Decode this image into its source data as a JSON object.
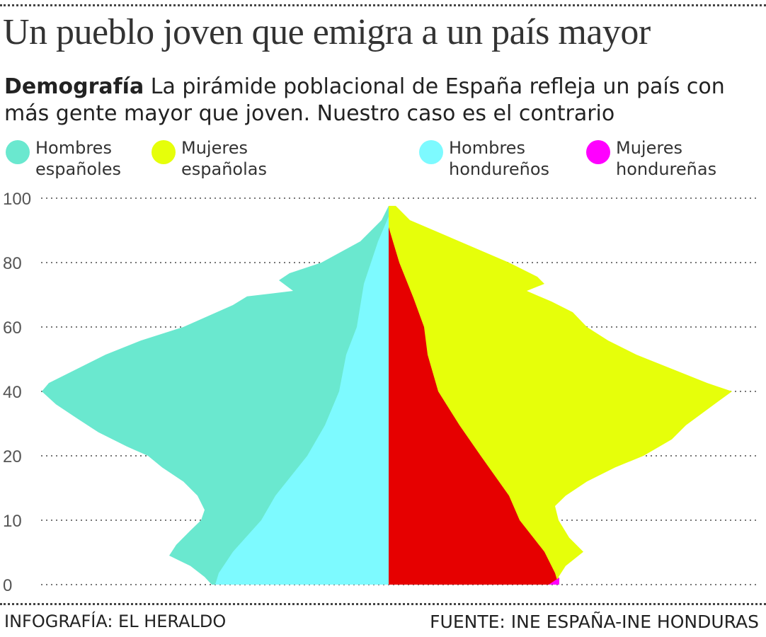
{
  "title": "Un pueblo joven que emigra a un país mayor",
  "subtitle": {
    "bold": "Demografía",
    "text": " La pirámide poblacional de España refleja un país con más gente mayor que joven. Nuestro caso es el contrario"
  },
  "credits": {
    "left": "INFOGRAFÍA: EL HERALDO",
    "right": "FUENTE: INE ESPAÑA-INE HONDURAS"
  },
  "chart_data": {
    "type": "area",
    "subtype": "population pyramid",
    "ylabel": "",
    "xlabel": "",
    "y_ticks": [
      100,
      80,
      60,
      40,
      20,
      10,
      0
    ],
    "y_ticks_evenly_spaced": true,
    "grid": "dotted horizontal",
    "legend_placement": "top",
    "x_units": "relative (no axis printed)",
    "series": [
      {
        "name": "Hombres españoles",
        "side": "left",
        "color": "#6AE8CF",
        "age": [
          97.6,
          93.2,
          86.6,
          80,
          76.7,
          74.5,
          71.2,
          69.5,
          66.8,
          60,
          55.8,
          51.4,
          47,
          42.6,
          40,
          36,
          31.6,
          27.3,
          22.9,
          20,
          18.2,
          16,
          13.8,
          11.6,
          10,
          8.4,
          6.2,
          4.5,
          2.9,
          1.2,
          0
        ],
        "value": [
          0,
          2,
          8,
          19,
          28,
          31,
          27,
          40,
          44,
          58,
          70,
          80,
          88,
          96,
          98,
          94,
          88,
          82,
          74,
          68,
          64,
          58,
          54,
          52,
          53,
          56,
          60,
          62,
          56,
          52,
          50
        ]
      },
      {
        "name": "Mujeres españolas",
        "side": "right",
        "color": "#E6FF0A",
        "age": [
          97.6,
          93.2,
          86.6,
          80,
          75.6,
          73.4,
          71.2,
          67.9,
          64.6,
          60,
          55.8,
          51.4,
          47,
          42.6,
          40,
          36,
          29.5,
          25.1,
          20,
          18.2,
          16,
          13.8,
          12.2,
          10,
          7.3,
          5.1,
          2.9,
          1.2,
          0
        ],
        "value": [
          2,
          6,
          20,
          34,
          42,
          44,
          39,
          46,
          52,
          56,
          62,
          70,
          80,
          90,
          97,
          92,
          84,
          80,
          72,
          64,
          56,
          50,
          47,
          48,
          51,
          55,
          50,
          48,
          48
        ]
      },
      {
        "name": "Hombres hondureños",
        "side": "left",
        "color": "#7DFAFF",
        "age": [
          94.3,
          86.6,
          80,
          73.4,
          60,
          51.4,
          40,
          29.5,
          20,
          13.8,
          10,
          5.1,
          1.8,
          0
        ],
        "value": [
          0,
          3,
          5,
          7,
          9,
          12,
          14,
          18,
          23,
          32,
          36,
          44,
          48,
          49
        ]
      },
      {
        "name": "Mujeres hondureñas",
        "side": "right",
        "color": "#FF00FF",
        "fill_color": "#E60000",
        "age": [
          91,
          80,
          69,
          60,
          51.4,
          40,
          29.5,
          20,
          13.8,
          10,
          5.1,
          1.8,
          0
        ],
        "value": [
          0,
          3,
          7,
          10,
          11,
          14,
          20,
          26,
          34,
          37,
          44,
          47,
          48
        ]
      }
    ]
  }
}
